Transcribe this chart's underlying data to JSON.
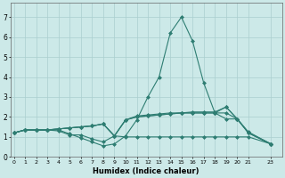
{
  "xlabel": "Humidex (Indice chaleur)",
  "ylabel": "",
  "bg_color": "#cce9e8",
  "line_color": "#2e7d72",
  "grid_color": "#aacfcf",
  "series": [
    {
      "x": [
        0,
        1,
        2,
        3,
        4,
        5,
        6,
        7,
        8,
        9,
        10,
        11,
        12,
        13,
        14,
        15,
        16,
        17,
        18,
        19,
        20,
        21,
        23
      ],
      "y": [
        1.2,
        1.35,
        1.35,
        1.35,
        1.35,
        1.15,
        0.95,
        0.75,
        0.55,
        0.65,
        1.05,
        1.85,
        3.0,
        4.0,
        6.2,
        7.0,
        5.8,
        3.7,
        2.2,
        2.5,
        1.9,
        1.2,
        0.65
      ]
    },
    {
      "x": [
        0,
        1,
        2,
        3,
        4,
        5,
        6,
        7,
        8,
        9,
        10,
        11,
        12,
        13,
        14,
        15,
        16,
        17,
        18,
        19,
        20,
        21,
        23
      ],
      "y": [
        1.2,
        1.35,
        1.35,
        1.35,
        1.4,
        1.45,
        1.5,
        1.55,
        1.65,
        1.05,
        1.85,
        2.05,
        2.1,
        2.15,
        2.2,
        2.2,
        2.25,
        2.25,
        2.25,
        2.5,
        1.9,
        1.25,
        0.65
      ]
    },
    {
      "x": [
        0,
        1,
        2,
        3,
        4,
        5,
        6,
        7,
        8,
        9,
        10,
        11,
        12,
        13,
        14,
        15,
        16,
        17,
        18,
        19,
        20,
        21,
        23
      ],
      "y": [
        1.2,
        1.35,
        1.35,
        1.35,
        1.4,
        1.45,
        1.5,
        1.55,
        1.65,
        1.05,
        1.85,
        2.0,
        2.05,
        2.1,
        2.15,
        2.2,
        2.2,
        2.2,
        2.2,
        2.2,
        1.9,
        1.2,
        0.65
      ]
    },
    {
      "x": [
        0,
        1,
        2,
        3,
        4,
        5,
        6,
        7,
        8,
        9,
        10,
        11,
        12,
        13,
        14,
        15,
        16,
        17,
        18,
        19,
        20,
        21,
        23
      ],
      "y": [
        1.2,
        1.35,
        1.35,
        1.35,
        1.4,
        1.45,
        1.5,
        1.55,
        1.65,
        1.05,
        1.85,
        2.0,
        2.05,
        2.1,
        2.15,
        2.2,
        2.2,
        2.2,
        2.2,
        1.9,
        1.9,
        1.2,
        0.65
      ]
    },
    {
      "x": [
        0,
        1,
        2,
        3,
        4,
        5,
        6,
        7,
        8,
        9,
        10,
        11,
        12,
        13,
        14,
        15,
        16,
        17,
        18,
        19,
        20,
        21,
        23
      ],
      "y": [
        1.2,
        1.35,
        1.35,
        1.35,
        1.3,
        1.1,
        1.1,
        0.9,
        0.75,
        1.05,
        1.0,
        1.0,
        1.0,
        1.0,
        1.0,
        1.0,
        1.0,
        1.0,
        1.0,
        1.0,
        1.0,
        1.0,
        0.65
      ]
    }
  ],
  "xlim": [
    -0.3,
    24.0
  ],
  "ylim": [
    0,
    7.7
  ],
  "xtick_vals": [
    0,
    1,
    2,
    3,
    4,
    5,
    6,
    7,
    8,
    9,
    10,
    11,
    12,
    13,
    14,
    15,
    16,
    17,
    18,
    19,
    20,
    21,
    23
  ],
  "xtick_labels": [
    "0",
    "1",
    "2",
    "3",
    "4",
    "5",
    "6",
    "7",
    "8",
    "9",
    "10",
    "11",
    "12",
    "13",
    "14",
    "15",
    "16",
    "17",
    "18",
    "19",
    "20",
    "21",
    "23"
  ],
  "yticks": [
    0,
    1,
    2,
    3,
    4,
    5,
    6,
    7
  ],
  "marker": "D",
  "markersize": 2.0,
  "linewidth": 0.8
}
